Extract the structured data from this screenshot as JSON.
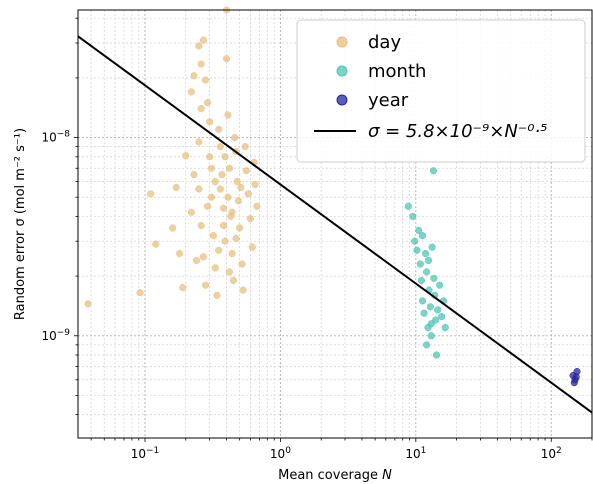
{
  "chart_data": {
    "type": "scatter",
    "xscale": "log",
    "yscale": "log",
    "xlim": [
      0.032,
      200
    ],
    "ylim": [
      3.05e-10,
      4.4e-08
    ],
    "grid": true,
    "legend_placement": "top-right",
    "xlabel_text": "Mean coverage ",
    "xlabel_var": "N",
    "ylabel_text": "Random error σ (mol m⁻² s⁻¹)",
    "x_ticks": [
      {
        "value": 0.1,
        "label": "10",
        "exp": "−1"
      },
      {
        "value": 1,
        "label": "10",
        "exp": "0"
      },
      {
        "value": 10,
        "label": "10",
        "exp": "1"
      },
      {
        "value": 100,
        "label": "10",
        "exp": "2"
      }
    ],
    "y_ticks": [
      {
        "value": 1e-09,
        "label": "10",
        "exp": "−9"
      },
      {
        "value": 1e-08,
        "label": "10",
        "exp": "−8"
      }
    ],
    "series": [
      {
        "name": "day",
        "color": "#e8c07e",
        "points": [
          [
            0.038,
            1.45e-09
          ],
          [
            0.092,
            1.65e-09
          ],
          [
            0.11,
            5.2e-09
          ],
          [
            0.12,
            2.9e-09
          ],
          [
            0.16,
            3.5e-09
          ],
          [
            0.18,
            2.6e-09
          ],
          [
            0.19,
            1.75e-09
          ],
          [
            0.17,
            5.6e-09
          ],
          [
            0.2,
            8.1e-09
          ],
          [
            0.22,
            1.7e-08
          ],
          [
            0.23,
            2.05e-08
          ],
          [
            0.23,
            6.5e-09
          ],
          [
            0.22,
            4.2e-09
          ],
          [
            0.24,
            2.4e-09
          ],
          [
            0.25,
            2.9e-08
          ],
          [
            0.26,
            2.35e-08
          ],
          [
            0.27,
            3.1e-08
          ],
          [
            0.28,
            1.95e-08
          ],
          [
            0.26,
            1.4e-08
          ],
          [
            0.25,
            9.5e-09
          ],
          [
            0.25,
            5.5e-09
          ],
          [
            0.26,
            3.6e-09
          ],
          [
            0.27,
            2.5e-09
          ],
          [
            0.28,
            1.8e-09
          ],
          [
            0.29,
            1.5e-08
          ],
          [
            0.3,
            1.2e-08
          ],
          [
            0.3,
            8e-09
          ],
          [
            0.31,
            5e-09
          ],
          [
            0.32,
            3.2e-09
          ],
          [
            0.33,
            2.2e-09
          ],
          [
            0.34,
            1.6e-09
          ],
          [
            0.35,
            1.1e-08
          ],
          [
            0.36,
            9e-09
          ],
          [
            0.37,
            6.5e-09
          ],
          [
            0.38,
            4.4e-09
          ],
          [
            0.39,
            3e-09
          ],
          [
            0.4,
            4.4e-08
          ],
          [
            0.4,
            2.5e-08
          ],
          [
            0.41,
            1.3e-08
          ],
          [
            0.42,
            7e-09
          ],
          [
            0.43,
            4e-09
          ],
          [
            0.44,
            2.6e-09
          ],
          [
            0.45,
            1.9e-09
          ],
          [
            0.46,
            1e-08
          ],
          [
            0.47,
            8.5e-09
          ],
          [
            0.48,
            6e-09
          ],
          [
            0.49,
            4.8e-09
          ],
          [
            0.5,
            3.5e-09
          ],
          [
            0.52,
            2.3e-09
          ],
          [
            0.53,
            1.7e-09
          ],
          [
            0.55,
            9e-09
          ],
          [
            0.56,
            6.8e-09
          ],
          [
            0.58,
            5.2e-09
          ],
          [
            0.6,
            3.9e-09
          ],
          [
            0.62,
            2.8e-09
          ],
          [
            0.64,
            7.5e-09
          ],
          [
            0.65,
            5.8e-09
          ],
          [
            0.67,
            4.5e-09
          ],
          [
            0.36,
            5.5e-09
          ],
          [
            0.41,
            5e-09
          ],
          [
            0.38,
            3.6e-09
          ],
          [
            0.44,
            4.2e-09
          ],
          [
            0.33,
            6e-09
          ],
          [
            0.47,
            3.1e-09
          ],
          [
            0.35,
            2.7e-09
          ],
          [
            0.42,
            2.1e-09
          ],
          [
            0.39,
            8e-09
          ],
          [
            0.31,
            7e-09
          ],
          [
            0.29,
            4.5e-09
          ],
          [
            0.51,
            5.6e-09
          ]
        ]
      },
      {
        "name": "month",
        "color": "#4ec5b5",
        "points": [
          [
            8.8,
            4.5e-09
          ],
          [
            9.5,
            4e-09
          ],
          [
            9.8,
            3e-09
          ],
          [
            10.2,
            2.7e-09
          ],
          [
            10.5,
            3.4e-09
          ],
          [
            10.8,
            2.3e-09
          ],
          [
            11.0,
            1.9e-09
          ],
          [
            11.2,
            1.5e-09
          ],
          [
            11.5,
            1.3e-09
          ],
          [
            11.8,
            2.6e-09
          ],
          [
            12.0,
            2.1e-09
          ],
          [
            12.3,
            1.1e-09
          ],
          [
            12.5,
            1.7e-09
          ],
          [
            12.8,
            1.4e-09
          ],
          [
            13.0,
            1e-09
          ],
          [
            13.2,
            2.8e-09
          ],
          [
            13.5,
            6.8e-09
          ],
          [
            13.8,
            1.6e-09
          ],
          [
            14.0,
            1.2e-09
          ],
          [
            14.2,
            8e-10
          ],
          [
            14.5,
            1.35e-09
          ],
          [
            15.0,
            1.8e-09
          ],
          [
            15.5,
            1.25e-09
          ],
          [
            16.0,
            1.5e-09
          ],
          [
            16.5,
            1.1e-09
          ],
          [
            11.2,
            3.2e-09
          ],
          [
            12.4,
            2.4e-09
          ],
          [
            13.6,
            1.95e-09
          ],
          [
            12.0,
            9e-10
          ],
          [
            13.0,
            1.15e-09
          ]
        ]
      },
      {
        "name": "year",
        "color": "#2626a0",
        "points": [
          [
            145,
            6.3e-10
          ],
          [
            150,
            6e-10
          ],
          [
            155,
            6.6e-10
          ],
          [
            148,
            5.8e-10
          ],
          [
            153,
            6.2e-10
          ]
        ]
      }
    ],
    "fit_line": {
      "coef": 5.8e-09,
      "exponent": -0.5,
      "color": "#000000",
      "legend_label": "σ = 5.8×10⁻⁹×N⁻⁰·⁵"
    }
  }
}
